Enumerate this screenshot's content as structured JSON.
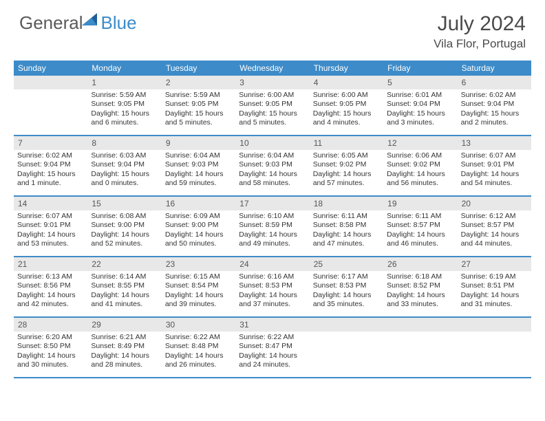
{
  "logo": {
    "text1": "General",
    "text2": "Blue"
  },
  "title": "July 2024",
  "location": "Vila Flor, Portugal",
  "colors": {
    "header_bg": "#3d8bc8",
    "daynum_bg": "#e8e8e8",
    "border": "#3d8bc8",
    "logo_blue": "#3c8cc9",
    "logo_gray": "#5a5a5a",
    "text": "#333333"
  },
  "weekdays": [
    "Sunday",
    "Monday",
    "Tuesday",
    "Wednesday",
    "Thursday",
    "Friday",
    "Saturday"
  ],
  "weeks": [
    [
      {
        "n": "",
        "sr": "",
        "ss": "",
        "dl": ""
      },
      {
        "n": "1",
        "sr": "Sunrise: 5:59 AM",
        "ss": "Sunset: 9:05 PM",
        "dl": "Daylight: 15 hours and 6 minutes."
      },
      {
        "n": "2",
        "sr": "Sunrise: 5:59 AM",
        "ss": "Sunset: 9:05 PM",
        "dl": "Daylight: 15 hours and 5 minutes."
      },
      {
        "n": "3",
        "sr": "Sunrise: 6:00 AM",
        "ss": "Sunset: 9:05 PM",
        "dl": "Daylight: 15 hours and 5 minutes."
      },
      {
        "n": "4",
        "sr": "Sunrise: 6:00 AM",
        "ss": "Sunset: 9:05 PM",
        "dl": "Daylight: 15 hours and 4 minutes."
      },
      {
        "n": "5",
        "sr": "Sunrise: 6:01 AM",
        "ss": "Sunset: 9:04 PM",
        "dl": "Daylight: 15 hours and 3 minutes."
      },
      {
        "n": "6",
        "sr": "Sunrise: 6:02 AM",
        "ss": "Sunset: 9:04 PM",
        "dl": "Daylight: 15 hours and 2 minutes."
      }
    ],
    [
      {
        "n": "7",
        "sr": "Sunrise: 6:02 AM",
        "ss": "Sunset: 9:04 PM",
        "dl": "Daylight: 15 hours and 1 minute."
      },
      {
        "n": "8",
        "sr": "Sunrise: 6:03 AM",
        "ss": "Sunset: 9:04 PM",
        "dl": "Daylight: 15 hours and 0 minutes."
      },
      {
        "n": "9",
        "sr": "Sunrise: 6:04 AM",
        "ss": "Sunset: 9:03 PM",
        "dl": "Daylight: 14 hours and 59 minutes."
      },
      {
        "n": "10",
        "sr": "Sunrise: 6:04 AM",
        "ss": "Sunset: 9:03 PM",
        "dl": "Daylight: 14 hours and 58 minutes."
      },
      {
        "n": "11",
        "sr": "Sunrise: 6:05 AM",
        "ss": "Sunset: 9:02 PM",
        "dl": "Daylight: 14 hours and 57 minutes."
      },
      {
        "n": "12",
        "sr": "Sunrise: 6:06 AM",
        "ss": "Sunset: 9:02 PM",
        "dl": "Daylight: 14 hours and 56 minutes."
      },
      {
        "n": "13",
        "sr": "Sunrise: 6:07 AM",
        "ss": "Sunset: 9:01 PM",
        "dl": "Daylight: 14 hours and 54 minutes."
      }
    ],
    [
      {
        "n": "14",
        "sr": "Sunrise: 6:07 AM",
        "ss": "Sunset: 9:01 PM",
        "dl": "Daylight: 14 hours and 53 minutes."
      },
      {
        "n": "15",
        "sr": "Sunrise: 6:08 AM",
        "ss": "Sunset: 9:00 PM",
        "dl": "Daylight: 14 hours and 52 minutes."
      },
      {
        "n": "16",
        "sr": "Sunrise: 6:09 AM",
        "ss": "Sunset: 9:00 PM",
        "dl": "Daylight: 14 hours and 50 minutes."
      },
      {
        "n": "17",
        "sr": "Sunrise: 6:10 AM",
        "ss": "Sunset: 8:59 PM",
        "dl": "Daylight: 14 hours and 49 minutes."
      },
      {
        "n": "18",
        "sr": "Sunrise: 6:11 AM",
        "ss": "Sunset: 8:58 PM",
        "dl": "Daylight: 14 hours and 47 minutes."
      },
      {
        "n": "19",
        "sr": "Sunrise: 6:11 AM",
        "ss": "Sunset: 8:57 PM",
        "dl": "Daylight: 14 hours and 46 minutes."
      },
      {
        "n": "20",
        "sr": "Sunrise: 6:12 AM",
        "ss": "Sunset: 8:57 PM",
        "dl": "Daylight: 14 hours and 44 minutes."
      }
    ],
    [
      {
        "n": "21",
        "sr": "Sunrise: 6:13 AM",
        "ss": "Sunset: 8:56 PM",
        "dl": "Daylight: 14 hours and 42 minutes."
      },
      {
        "n": "22",
        "sr": "Sunrise: 6:14 AM",
        "ss": "Sunset: 8:55 PM",
        "dl": "Daylight: 14 hours and 41 minutes."
      },
      {
        "n": "23",
        "sr": "Sunrise: 6:15 AM",
        "ss": "Sunset: 8:54 PM",
        "dl": "Daylight: 14 hours and 39 minutes."
      },
      {
        "n": "24",
        "sr": "Sunrise: 6:16 AM",
        "ss": "Sunset: 8:53 PM",
        "dl": "Daylight: 14 hours and 37 minutes."
      },
      {
        "n": "25",
        "sr": "Sunrise: 6:17 AM",
        "ss": "Sunset: 8:53 PM",
        "dl": "Daylight: 14 hours and 35 minutes."
      },
      {
        "n": "26",
        "sr": "Sunrise: 6:18 AM",
        "ss": "Sunset: 8:52 PM",
        "dl": "Daylight: 14 hours and 33 minutes."
      },
      {
        "n": "27",
        "sr": "Sunrise: 6:19 AM",
        "ss": "Sunset: 8:51 PM",
        "dl": "Daylight: 14 hours and 31 minutes."
      }
    ],
    [
      {
        "n": "28",
        "sr": "Sunrise: 6:20 AM",
        "ss": "Sunset: 8:50 PM",
        "dl": "Daylight: 14 hours and 30 minutes."
      },
      {
        "n": "29",
        "sr": "Sunrise: 6:21 AM",
        "ss": "Sunset: 8:49 PM",
        "dl": "Daylight: 14 hours and 28 minutes."
      },
      {
        "n": "30",
        "sr": "Sunrise: 6:22 AM",
        "ss": "Sunset: 8:48 PM",
        "dl": "Daylight: 14 hours and 26 minutes."
      },
      {
        "n": "31",
        "sr": "Sunrise: 6:22 AM",
        "ss": "Sunset: 8:47 PM",
        "dl": "Daylight: 14 hours and 24 minutes."
      },
      {
        "n": "",
        "sr": "",
        "ss": "",
        "dl": ""
      },
      {
        "n": "",
        "sr": "",
        "ss": "",
        "dl": ""
      },
      {
        "n": "",
        "sr": "",
        "ss": "",
        "dl": ""
      }
    ]
  ]
}
